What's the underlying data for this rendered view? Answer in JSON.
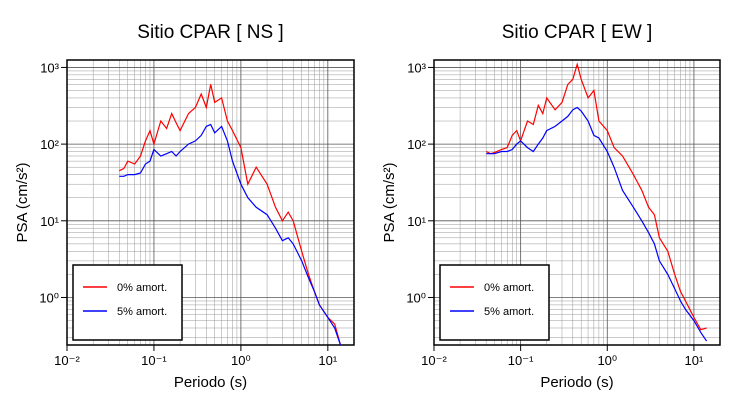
{
  "chart_data": [
    {
      "type": "line",
      "title": "Sitio CPAR [ NS ]",
      "xlabel": "Periodo (s)",
      "ylabel": "PSA (cm/s²)",
      "xscale": "log",
      "yscale": "log",
      "grid": true,
      "legend": "lower left",
      "xlim": [
        0.01,
        20
      ],
      "ylim": [
        0.24,
        1250
      ],
      "xticks": [
        {
          "value": 0.01,
          "label": "10⁻²"
        },
        {
          "value": 0.1,
          "label": "10⁻¹"
        },
        {
          "value": 1,
          "label": "10⁰"
        },
        {
          "value": 10,
          "label": "10¹"
        }
      ],
      "yticks": [
        {
          "value": 1,
          "label": "10⁰"
        },
        {
          "value": 10,
          "label": "10¹"
        },
        {
          "value": 100,
          "label": "10²"
        },
        {
          "value": 1000,
          "label": "10³"
        }
      ],
      "x": [
        0.04,
        0.045,
        0.05,
        0.06,
        0.07,
        0.08,
        0.09,
        0.1,
        0.12,
        0.14,
        0.16,
        0.18,
        0.2,
        0.25,
        0.3,
        0.35,
        0.4,
        0.45,
        0.5,
        0.6,
        0.7,
        0.8,
        1,
        1.2,
        1.5,
        2,
        2.5,
        3,
        3.5,
        4,
        5,
        6,
        7,
        8,
        10,
        12,
        14
      ],
      "series": [
        {
          "name": "0% amort.",
          "color": "#ff0000",
          "values": [
            45,
            48,
            60,
            55,
            70,
            110,
            150,
            100,
            200,
            160,
            250,
            190,
            150,
            250,
            300,
            450,
            300,
            600,
            350,
            400,
            200,
            150,
            90,
            30,
            50,
            30,
            15,
            10,
            13,
            10,
            4,
            2,
            1.2,
            0.8,
            0.55,
            0.45,
            0.24
          ]
        },
        {
          "name": "5% amort.",
          "color": "#0000ff",
          "values": [
            38,
            38,
            40,
            40,
            42,
            55,
            60,
            85,
            70,
            75,
            80,
            70,
            80,
            100,
            110,
            130,
            170,
            180,
            140,
            170,
            110,
            60,
            30,
            20,
            15,
            12,
            8,
            5.5,
            6,
            5,
            3,
            1.8,
            1.2,
            0.8,
            0.55,
            0.4,
            0.24
          ]
        }
      ]
    },
    {
      "type": "line",
      "title": "Sitio CPAR [ EW ]",
      "xlabel": "Periodo (s)",
      "ylabel": "PSA (cm/s²)",
      "xscale": "log",
      "yscale": "log",
      "grid": true,
      "legend": "lower left",
      "xlim": [
        0.01,
        20
      ],
      "ylim": [
        0.24,
        1250
      ],
      "xticks": [
        {
          "value": 0.01,
          "label": "10⁻²"
        },
        {
          "value": 0.1,
          "label": "10⁻¹"
        },
        {
          "value": 1,
          "label": "10⁰"
        },
        {
          "value": 10,
          "label": "10¹"
        }
      ],
      "yticks": [
        {
          "value": 1,
          "label": "10⁰"
        },
        {
          "value": 10,
          "label": "10¹"
        },
        {
          "value": 100,
          "label": "10²"
        },
        {
          "value": 1000,
          "label": "10³"
        }
      ],
      "x": [
        0.04,
        0.045,
        0.05,
        0.06,
        0.07,
        0.08,
        0.09,
        0.1,
        0.12,
        0.14,
        0.16,
        0.18,
        0.2,
        0.25,
        0.3,
        0.35,
        0.4,
        0.45,
        0.5,
        0.6,
        0.7,
        0.8,
        1,
        1.2,
        1.5,
        2,
        2.5,
        3,
        3.5,
        4,
        5,
        6,
        7,
        8,
        10,
        12,
        14
      ],
      "series": [
        {
          "name": "0% amort.",
          "color": "#ff0000",
          "values": [
            80,
            75,
            78,
            85,
            90,
            130,
            150,
            110,
            200,
            180,
            320,
            250,
            400,
            280,
            350,
            600,
            700,
            1100,
            700,
            400,
            500,
            200,
            150,
            90,
            70,
            40,
            25,
            15,
            12,
            6,
            4,
            2,
            1.2,
            0.9,
            0.55,
            0.38,
            0.4
          ]
        },
        {
          "name": "5% amort.",
          "color": "#0000ff",
          "values": [
            75,
            75,
            75,
            80,
            80,
            85,
            100,
            110,
            90,
            80,
            100,
            120,
            150,
            170,
            200,
            230,
            280,
            300,
            270,
            200,
            130,
            120,
            80,
            50,
            25,
            15,
            10,
            7,
            5,
            3,
            2,
            1.3,
            0.9,
            0.7,
            0.5,
            0.35,
            0.27
          ]
        }
      ]
    }
  ]
}
